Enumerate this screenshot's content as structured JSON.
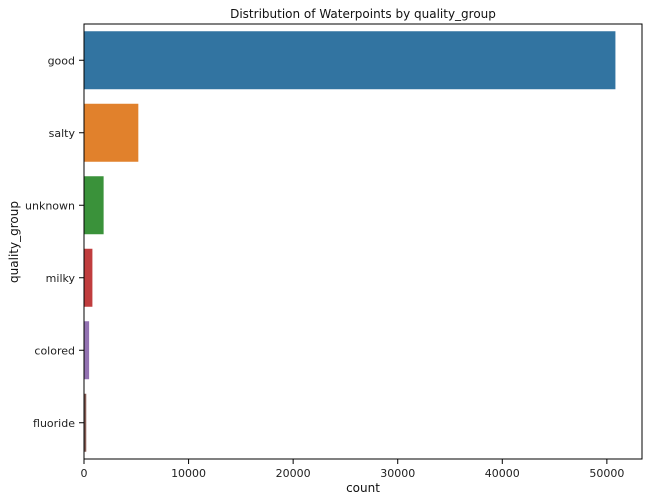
{
  "chart_data": {
    "type": "bar",
    "orientation": "horizontal",
    "title": "Distribution of Waterpoints by quality_group",
    "xlabel": "count",
    "ylabel": "quality_group",
    "categories": [
      "good",
      "salty",
      "unknown",
      "milky",
      "colored",
      "fluoride"
    ],
    "values": [
      50818,
      5195,
      1876,
      804,
      490,
      217
    ],
    "colors": [
      "#3274a1",
      "#e1812c",
      "#3a923a",
      "#c03d3e",
      "#9372b2",
      "#845b53"
    ],
    "xlim": [
      0,
      53360
    ],
    "xticks": [
      0,
      10000,
      20000,
      30000,
      40000,
      50000
    ],
    "grid": false
  }
}
